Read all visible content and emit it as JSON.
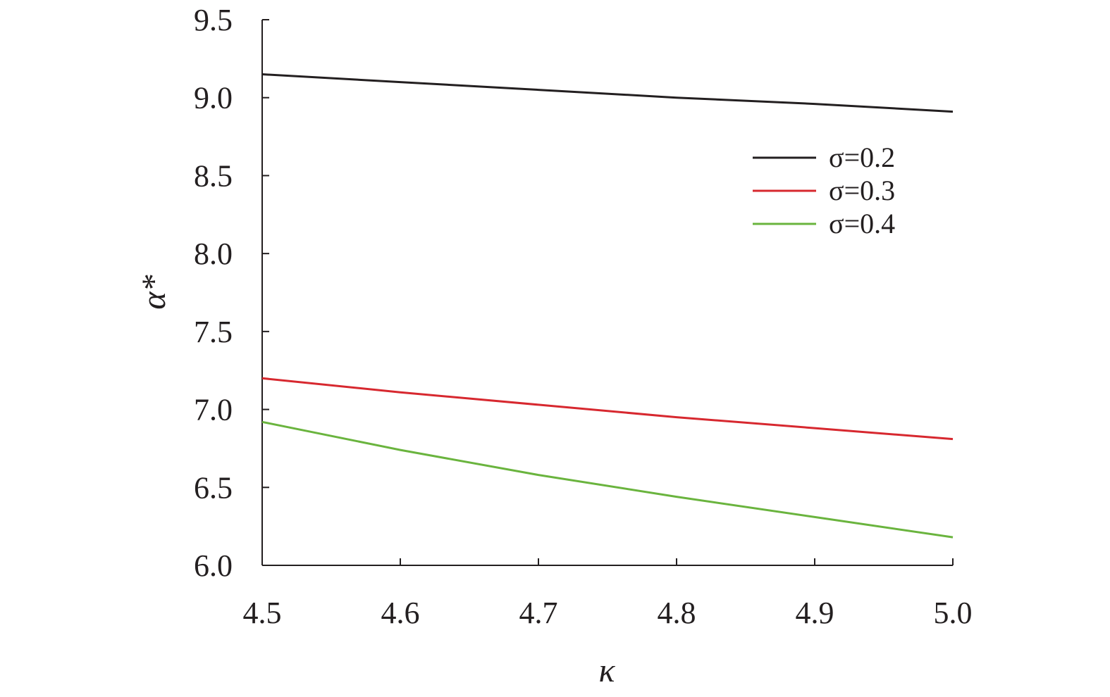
{
  "chart_data": {
    "type": "line",
    "xlabel": "κ",
    "ylabel": "α*",
    "xlim": [
      4.5,
      5.0
    ],
    "ylim": [
      6.0,
      9.5
    ],
    "xticks": [
      "4.5",
      "4.6",
      "4.7",
      "4.8",
      "4.9",
      "5.0"
    ],
    "yticks": [
      "6.0",
      "6.5",
      "7.0",
      "7.5",
      "8.0",
      "8.5",
      "9.0",
      "9.5"
    ],
    "grid": false,
    "legend_position": "top-right",
    "x": [
      4.5,
      4.6,
      4.7,
      4.8,
      4.9,
      5.0
    ],
    "series": [
      {
        "name": "σ=0.2",
        "color": "#231f20",
        "values": [
          9.15,
          9.1,
          9.05,
          9.0,
          8.96,
          8.91
        ]
      },
      {
        "name": "σ=0.3",
        "color": "#d7282f",
        "values": [
          7.2,
          7.11,
          7.03,
          6.95,
          6.88,
          6.81
        ]
      },
      {
        "name": "σ=0.4",
        "color": "#6ab43e",
        "values": [
          6.92,
          6.74,
          6.58,
          6.44,
          6.31,
          6.18
        ]
      }
    ]
  }
}
